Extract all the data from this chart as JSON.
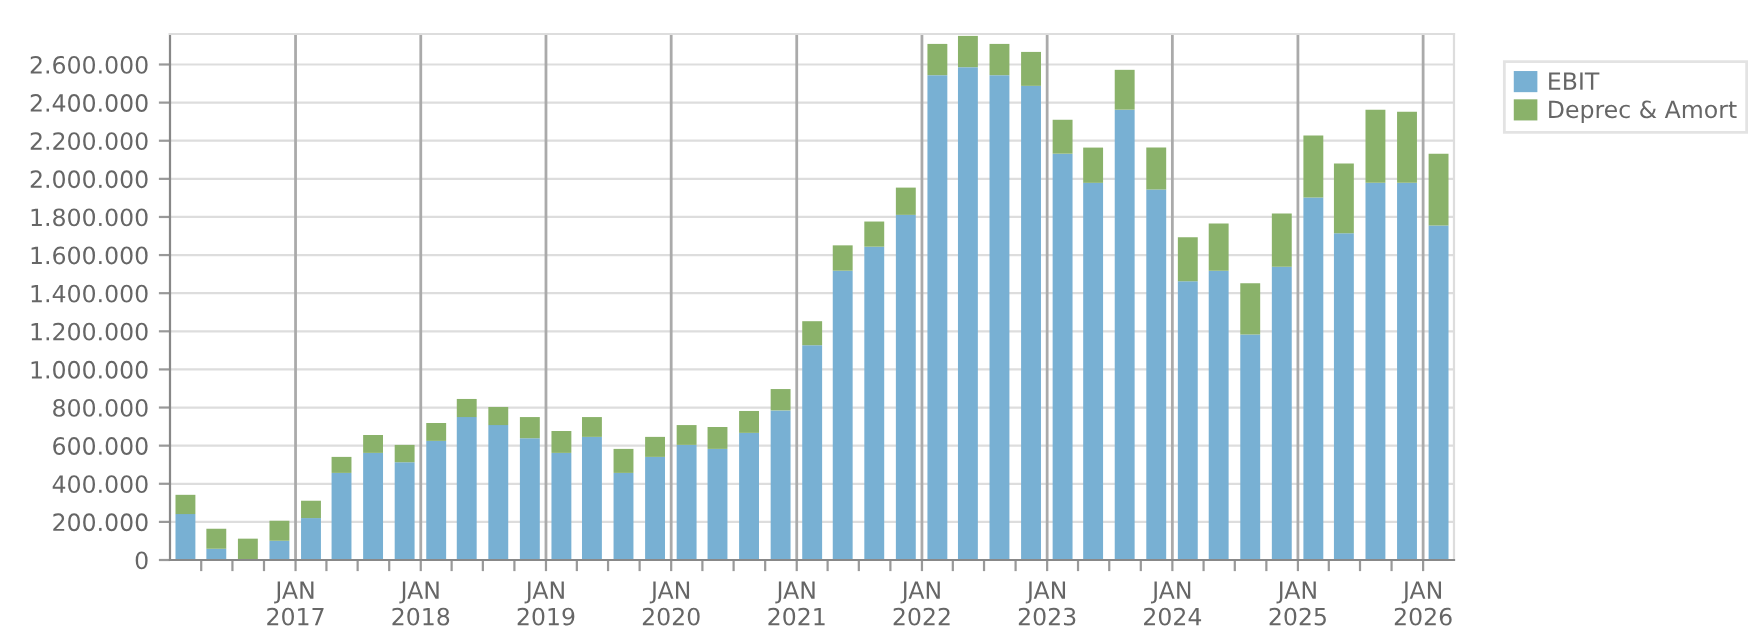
{
  "chart_data": {
    "type": "bar",
    "stacked": true,
    "x": [
      "2016-02-15",
      "2016-05-15",
      "2016-08-15",
      "2016-11-15",
      "2017-02-15",
      "2017-05-15",
      "2017-08-15",
      "2017-11-15",
      "2018-02-15",
      "2018-05-15",
      "2018-08-15",
      "2018-11-15",
      "2019-02-15",
      "2019-05-15",
      "2019-08-15",
      "2019-11-15",
      "2020-02-15",
      "2020-05-15",
      "2020-08-15",
      "2020-11-15",
      "2021-02-15",
      "2021-05-15",
      "2021-08-15",
      "2021-11-15",
      "2022-02-15",
      "2022-05-15",
      "2022-08-15",
      "2022-11-15",
      "2023-02-15",
      "2023-05-15",
      "2023-08-15",
      "2023-11-15",
      "2024-02-15",
      "2024-05-15",
      "2024-08-15",
      "2024-11-15",
      "2025-02-15",
      "2025-05-15",
      "2025-08-15",
      "2025-11-15",
      "2026-02-15"
    ],
    "series": [
      {
        "name": "EBIT",
        "color": "#78b0d3",
        "values": [
          241000,
          59000,
          0,
          101000,
          220000,
          457000,
          562000,
          513000,
          625000,
          750000,
          708000,
          639000,
          562000,
          646000,
          457000,
          541000,
          604000,
          583000,
          667000,
          785000,
          1127000,
          1518000,
          1644000,
          1811000,
          2544000,
          2586000,
          2544000,
          2488000,
          2132000,
          1979000,
          2363000,
          1944000,
          1462000,
          1518000,
          1183000,
          1539000,
          1902000,
          1714000,
          1979000,
          1979000,
          1755000
        ]
      },
      {
        "name": "Deprec & Amort",
        "color": "#8ab26a",
        "values": [
          101000,
          105000,
          112000,
          105000,
          91000,
          84000,
          94000,
          91000,
          94000,
          95000,
          95000,
          111000,
          115000,
          104000,
          126000,
          105000,
          104000,
          115000,
          115000,
          112000,
          126000,
          133000,
          132000,
          143000,
          164000,
          164000,
          164000,
          178000,
          178000,
          185000,
          209000,
          220000,
          231000,
          248000,
          269000,
          279000,
          325000,
          366000,
          384000,
          373000,
          377000
        ]
      }
    ],
    "xlim": [
      "2016-01-01",
      "2026-04-01"
    ],
    "xticks": [
      {
        "value": "2016-04-01",
        "label": null
      },
      {
        "value": "2016-07-01",
        "label": null
      },
      {
        "value": "2016-10-01",
        "label": null
      },
      {
        "value": "2017-01-01",
        "label": "JAN\n2017"
      },
      {
        "value": "2017-04-01",
        "label": null
      },
      {
        "value": "2017-07-01",
        "label": null
      },
      {
        "value": "2017-10-01",
        "label": null
      },
      {
        "value": "2018-01-01",
        "label": "JAN\n2018"
      },
      {
        "value": "2018-04-01",
        "label": null
      },
      {
        "value": "2018-07-01",
        "label": null
      },
      {
        "value": "2018-10-01",
        "label": null
      },
      {
        "value": "2019-01-01",
        "label": "JAN\n2019"
      },
      {
        "value": "2019-04-01",
        "label": null
      },
      {
        "value": "2019-07-01",
        "label": null
      },
      {
        "value": "2019-10-01",
        "label": null
      },
      {
        "value": "2020-01-01",
        "label": "JAN\n2020"
      },
      {
        "value": "2020-04-01",
        "label": null
      },
      {
        "value": "2020-07-01",
        "label": null
      },
      {
        "value": "2020-10-01",
        "label": null
      },
      {
        "value": "2021-01-01",
        "label": "JAN\n2021"
      },
      {
        "value": "2021-04-01",
        "label": null
      },
      {
        "value": "2021-07-01",
        "label": null
      },
      {
        "value": "2021-10-01",
        "label": null
      },
      {
        "value": "2022-01-01",
        "label": "JAN\n2022"
      },
      {
        "value": "2022-04-01",
        "label": null
      },
      {
        "value": "2022-07-01",
        "label": null
      },
      {
        "value": "2022-10-01",
        "label": null
      },
      {
        "value": "2023-01-01",
        "label": "JAN\n2023"
      },
      {
        "value": "2023-04-01",
        "label": null
      },
      {
        "value": "2023-07-01",
        "label": null
      },
      {
        "value": "2023-10-01",
        "label": null
      },
      {
        "value": "2024-01-01",
        "label": "JAN\n2024"
      },
      {
        "value": "2024-04-01",
        "label": null
      },
      {
        "value": "2024-07-01",
        "label": null
      },
      {
        "value": "2024-10-01",
        "label": null
      },
      {
        "value": "2025-01-01",
        "label": "JAN\n2025"
      },
      {
        "value": "2025-04-01",
        "label": null
      },
      {
        "value": "2025-07-01",
        "label": null
      },
      {
        "value": "2025-10-01",
        "label": null
      },
      {
        "value": "2026-01-01",
        "label": "JAN\n2026"
      }
    ],
    "ylim": [
      0,
      2760000
    ],
    "yticks": [
      {
        "value": 0,
        "label": "0"
      },
      {
        "value": 200000,
        "label": "200.000"
      },
      {
        "value": 400000,
        "label": "400.000"
      },
      {
        "value": 600000,
        "label": "600.000"
      },
      {
        "value": 800000,
        "label": "800.000"
      },
      {
        "value": 1000000,
        "label": "1.000.000"
      },
      {
        "value": 1200000,
        "label": "1.200.000"
      },
      {
        "value": 1400000,
        "label": "1.400.000"
      },
      {
        "value": 1600000,
        "label": "1.600.000"
      },
      {
        "value": 1800000,
        "label": "1.800.000"
      },
      {
        "value": 2000000,
        "label": "2.000.000"
      },
      {
        "value": 2200000,
        "label": "2.200.000"
      },
      {
        "value": 2400000,
        "label": "2.400.000"
      },
      {
        "value": 2600000,
        "label": "2.600.000"
      }
    ],
    "grid": true,
    "legend": "top right"
  }
}
